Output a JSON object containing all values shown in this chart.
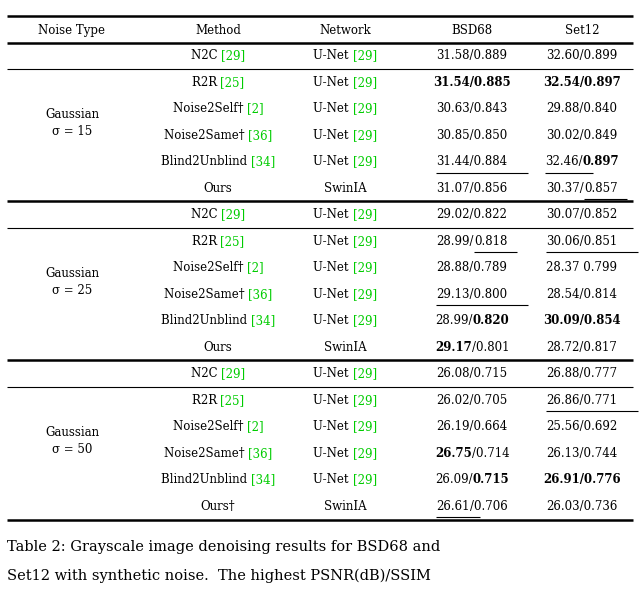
{
  "headers": [
    "Noise Type",
    "Method",
    "Network",
    "BSD68",
    "Set12"
  ],
  "sections": [
    {
      "noise_label": "Gaussian\nσ = 15",
      "rows": [
        {
          "method_parts": [
            {
              "text": "N2C ",
              "bold": false,
              "color": "black"
            },
            {
              "text": "[29]",
              "bold": false,
              "color": "#00cc00"
            }
          ],
          "network_parts": [
            {
              "text": "U-Net ",
              "bold": false,
              "color": "black"
            },
            {
              "text": "[29]",
              "bold": false,
              "color": "#00cc00"
            }
          ],
          "bsd68_parts": [
            {
              "text": "31.58/0.889",
              "bold": false,
              "color": "black",
              "underline": false
            }
          ],
          "set12_parts": [
            {
              "text": "32.60/0.899",
              "bold": false,
              "color": "black",
              "underline": false
            }
          ],
          "n2c": true
        },
        {
          "method_parts": [
            {
              "text": "R2R ",
              "bold": false,
              "color": "black"
            },
            {
              "text": "[25]",
              "bold": false,
              "color": "#00cc00"
            }
          ],
          "network_parts": [
            {
              "text": "U-Net ",
              "bold": false,
              "color": "black"
            },
            {
              "text": "[29]",
              "bold": false,
              "color": "#00cc00"
            }
          ],
          "bsd68_parts": [
            {
              "text": "31.54/0.885",
              "bold": true,
              "color": "black",
              "underline": false
            }
          ],
          "set12_parts": [
            {
              "text": "32.54/0.897",
              "bold": true,
              "color": "black",
              "underline": false
            }
          ],
          "n2c": false
        },
        {
          "method_parts": [
            {
              "text": "Noise2Self† ",
              "bold": false,
              "color": "black"
            },
            {
              "text": "[2]",
              "bold": false,
              "color": "#00cc00"
            }
          ],
          "network_parts": [
            {
              "text": "U-Net ",
              "bold": false,
              "color": "black"
            },
            {
              "text": "[29]",
              "bold": false,
              "color": "#00cc00"
            }
          ],
          "bsd68_parts": [
            {
              "text": "30.63/0.843",
              "bold": false,
              "color": "black",
              "underline": false
            }
          ],
          "set12_parts": [
            {
              "text": "29.88/0.840",
              "bold": false,
              "color": "black",
              "underline": false
            }
          ],
          "n2c": false
        },
        {
          "method_parts": [
            {
              "text": "Noise2Same† ",
              "bold": false,
              "color": "black"
            },
            {
              "text": "[36]",
              "bold": false,
              "color": "#00cc00"
            }
          ],
          "network_parts": [
            {
              "text": "U-Net ",
              "bold": false,
              "color": "black"
            },
            {
              "text": "[29]",
              "bold": false,
              "color": "#00cc00"
            }
          ],
          "bsd68_parts": [
            {
              "text": "30.85/0.850",
              "bold": false,
              "color": "black",
              "underline": false
            }
          ],
          "set12_parts": [
            {
              "text": "30.02/0.849",
              "bold": false,
              "color": "black",
              "underline": false
            }
          ],
          "n2c": false
        },
        {
          "method_parts": [
            {
              "text": "Blind2Unblind ",
              "bold": false,
              "color": "black"
            },
            {
              "text": "[34]",
              "bold": false,
              "color": "#00cc00"
            }
          ],
          "network_parts": [
            {
              "text": "U-Net ",
              "bold": false,
              "color": "black"
            },
            {
              "text": "[29]",
              "bold": false,
              "color": "#00cc00"
            }
          ],
          "bsd68_parts": [
            {
              "text": "31.44/0.884",
              "bold": false,
              "color": "black",
              "underline": true
            }
          ],
          "set12_parts": [
            {
              "text": "32.46/",
              "bold": false,
              "color": "black",
              "underline": true
            },
            {
              "text": "0.897",
              "bold": true,
              "color": "black",
              "underline": false
            }
          ],
          "n2c": false
        },
        {
          "method_parts": [
            {
              "text": "Ours",
              "bold": false,
              "color": "black"
            }
          ],
          "network_parts": [
            {
              "text": "SwinIA",
              "bold": false,
              "color": "black"
            }
          ],
          "bsd68_parts": [
            {
              "text": "31.07/0.856",
              "bold": false,
              "color": "black",
              "underline": false
            }
          ],
          "set12_parts": [
            {
              "text": "30.37/",
              "bold": false,
              "color": "black",
              "underline": false
            },
            {
              "text": "0.857",
              "bold": false,
              "color": "black",
              "underline": true
            }
          ],
          "n2c": false
        }
      ]
    },
    {
      "noise_label": "Gaussian\nσ = 25",
      "rows": [
        {
          "method_parts": [
            {
              "text": "N2C ",
              "bold": false,
              "color": "black"
            },
            {
              "text": "[29]",
              "bold": false,
              "color": "#00cc00"
            }
          ],
          "network_parts": [
            {
              "text": "U-Net ",
              "bold": false,
              "color": "black"
            },
            {
              "text": "[29]",
              "bold": false,
              "color": "#00cc00"
            }
          ],
          "bsd68_parts": [
            {
              "text": "29.02/0.822",
              "bold": false,
              "color": "black",
              "underline": false
            }
          ],
          "set12_parts": [
            {
              "text": "30.07/0.852",
              "bold": false,
              "color": "black",
              "underline": false
            }
          ],
          "n2c": true
        },
        {
          "method_parts": [
            {
              "text": "R2R ",
              "bold": false,
              "color": "black"
            },
            {
              "text": "[25]",
              "bold": false,
              "color": "#00cc00"
            }
          ],
          "network_parts": [
            {
              "text": "U-Net ",
              "bold": false,
              "color": "black"
            },
            {
              "text": "[29]",
              "bold": false,
              "color": "#00cc00"
            }
          ],
          "bsd68_parts": [
            {
              "text": "28.99/",
              "bold": false,
              "color": "black",
              "underline": false
            },
            {
              "text": "0.818",
              "bold": false,
              "color": "black",
              "underline": true
            }
          ],
          "set12_parts": [
            {
              "text": "30.06/0.851",
              "bold": false,
              "color": "black",
              "underline": true
            }
          ],
          "n2c": false
        },
        {
          "method_parts": [
            {
              "text": "Noise2Self† ",
              "bold": false,
              "color": "black"
            },
            {
              "text": "[2]",
              "bold": false,
              "color": "#00cc00"
            }
          ],
          "network_parts": [
            {
              "text": "U-Net ",
              "bold": false,
              "color": "black"
            },
            {
              "text": "[29]",
              "bold": false,
              "color": "#00cc00"
            }
          ],
          "bsd68_parts": [
            {
              "text": "28.88/0.789",
              "bold": false,
              "color": "black",
              "underline": false
            }
          ],
          "set12_parts": [
            {
              "text": "28.37 0.799",
              "bold": false,
              "color": "black",
              "underline": false
            }
          ],
          "n2c": false
        },
        {
          "method_parts": [
            {
              "text": "Noise2Same† ",
              "bold": false,
              "color": "black"
            },
            {
              "text": "[36]",
              "bold": false,
              "color": "#00cc00"
            }
          ],
          "network_parts": [
            {
              "text": "U-Net ",
              "bold": false,
              "color": "black"
            },
            {
              "text": "[29]",
              "bold": false,
              "color": "#00cc00"
            }
          ],
          "bsd68_parts": [
            {
              "text": "29.13/0.800",
              "bold": false,
              "color": "black",
              "underline": true
            }
          ],
          "set12_parts": [
            {
              "text": "28.54/0.814",
              "bold": false,
              "color": "black",
              "underline": false
            }
          ],
          "n2c": false
        },
        {
          "method_parts": [
            {
              "text": "Blind2Unblind ",
              "bold": false,
              "color": "black"
            },
            {
              "text": "[34]",
              "bold": false,
              "color": "#00cc00"
            }
          ],
          "network_parts": [
            {
              "text": "U-Net ",
              "bold": false,
              "color": "black"
            },
            {
              "text": "[29]",
              "bold": false,
              "color": "#00cc00"
            }
          ],
          "bsd68_parts": [
            {
              "text": "28.99/",
              "bold": false,
              "color": "black",
              "underline": false
            },
            {
              "text": "0.820",
              "bold": true,
              "color": "black",
              "underline": false
            }
          ],
          "set12_parts": [
            {
              "text": "30.09/0.854",
              "bold": true,
              "color": "black",
              "underline": false
            }
          ],
          "n2c": false
        },
        {
          "method_parts": [
            {
              "text": "Ours",
              "bold": false,
              "color": "black"
            }
          ],
          "network_parts": [
            {
              "text": "SwinIA",
              "bold": false,
              "color": "black"
            }
          ],
          "bsd68_parts": [
            {
              "text": "29.17",
              "bold": true,
              "color": "black",
              "underline": false
            },
            {
              "text": "/0.801",
              "bold": false,
              "color": "black",
              "underline": false
            }
          ],
          "set12_parts": [
            {
              "text": "28.72/0.817",
              "bold": false,
              "color": "black",
              "underline": false
            }
          ],
          "n2c": false
        }
      ]
    },
    {
      "noise_label": "Gaussian\nσ = 50",
      "rows": [
        {
          "method_parts": [
            {
              "text": "N2C ",
              "bold": false,
              "color": "black"
            },
            {
              "text": "[29]",
              "bold": false,
              "color": "#00cc00"
            }
          ],
          "network_parts": [
            {
              "text": "U-Net ",
              "bold": false,
              "color": "black"
            },
            {
              "text": "[29]",
              "bold": false,
              "color": "#00cc00"
            }
          ],
          "bsd68_parts": [
            {
              "text": "26.08/0.715",
              "bold": false,
              "color": "black",
              "underline": false
            }
          ],
          "set12_parts": [
            {
              "text": "26.88/0.777",
              "bold": false,
              "color": "black",
              "underline": false
            }
          ],
          "n2c": true
        },
        {
          "method_parts": [
            {
              "text": "R2R ",
              "bold": false,
              "color": "black"
            },
            {
              "text": "[25]",
              "bold": false,
              "color": "#00cc00"
            }
          ],
          "network_parts": [
            {
              "text": "U-Net ",
              "bold": false,
              "color": "black"
            },
            {
              "text": "[29]",
              "bold": false,
              "color": "#00cc00"
            }
          ],
          "bsd68_parts": [
            {
              "text": "26.02/0.705",
              "bold": false,
              "color": "black",
              "underline": false
            }
          ],
          "set12_parts": [
            {
              "text": "26.86/0.771",
              "bold": false,
              "color": "black",
              "underline": true
            }
          ],
          "n2c": false
        },
        {
          "method_parts": [
            {
              "text": "Noise2Self† ",
              "bold": false,
              "color": "black"
            },
            {
              "text": "[2]",
              "bold": false,
              "color": "#00cc00"
            }
          ],
          "network_parts": [
            {
              "text": "U-Net ",
              "bold": false,
              "color": "black"
            },
            {
              "text": "[29]",
              "bold": false,
              "color": "#00cc00"
            }
          ],
          "bsd68_parts": [
            {
              "text": "26.19/0.664",
              "bold": false,
              "color": "black",
              "underline": false
            }
          ],
          "set12_parts": [
            {
              "text": "25.56/0.692",
              "bold": false,
              "color": "black",
              "underline": false
            }
          ],
          "n2c": false
        },
        {
          "method_parts": [
            {
              "text": "Noise2Same† ",
              "bold": false,
              "color": "black"
            },
            {
              "text": "[36]",
              "bold": false,
              "color": "#00cc00"
            }
          ],
          "network_parts": [
            {
              "text": "U-Net ",
              "bold": false,
              "color": "black"
            },
            {
              "text": "[29]",
              "bold": false,
              "color": "#00cc00"
            }
          ],
          "bsd68_parts": [
            {
              "text": "26.75",
              "bold": true,
              "color": "black",
              "underline": false
            },
            {
              "text": "/0.714",
              "bold": false,
              "color": "black",
              "underline": false
            }
          ],
          "set12_parts": [
            {
              "text": "26.13/0.744",
              "bold": false,
              "color": "black",
              "underline": false
            }
          ],
          "n2c": false
        },
        {
          "method_parts": [
            {
              "text": "Blind2Unblind ",
              "bold": false,
              "color": "black"
            },
            {
              "text": "[34]",
              "bold": false,
              "color": "#00cc00"
            }
          ],
          "network_parts": [
            {
              "text": "U-Net ",
              "bold": false,
              "color": "black"
            },
            {
              "text": "[29]",
              "bold": false,
              "color": "#00cc00"
            }
          ],
          "bsd68_parts": [
            {
              "text": "26.09/",
              "bold": false,
              "color": "black",
              "underline": false
            },
            {
              "text": "0.715",
              "bold": true,
              "color": "black",
              "underline": false
            }
          ],
          "set12_parts": [
            {
              "text": "26.91/0.776",
              "bold": true,
              "color": "black",
              "underline": false
            }
          ],
          "n2c": false
        },
        {
          "method_parts": [
            {
              "text": "Ours†",
              "bold": false,
              "color": "black"
            }
          ],
          "network_parts": [
            {
              "text": "SwinIA",
              "bold": false,
              "color": "black"
            }
          ],
          "bsd68_parts": [
            {
              "text": "26.61",
              "bold": false,
              "color": "black",
              "underline": true
            },
            {
              "text": "/0.706",
              "bold": false,
              "color": "black",
              "underline": false
            }
          ],
          "set12_parts": [
            {
              "text": "26.03/0.736",
              "bold": false,
              "color": "black",
              "underline": false
            }
          ],
          "n2c": false
        }
      ]
    }
  ],
  "caption_line1": "Table 2: Grayscale image denoising results for BSD68 and",
  "caption_line2": "Set12 with synthetic noise.  The highest PSNR(dB)/SSIM",
  "bg_color": "#ffffff",
  "font_size": 8.5,
  "caption_font_size": 10.5,
  "thick_lw": 1.8,
  "thin_lw": 0.8
}
